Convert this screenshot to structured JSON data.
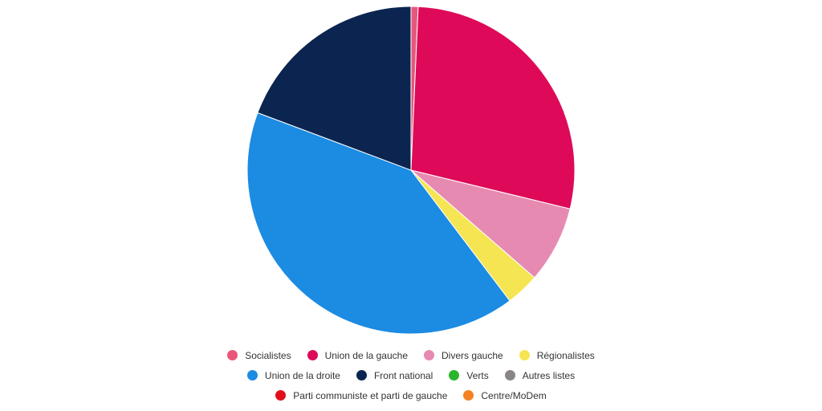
{
  "chart_data": {
    "type": "pie",
    "title": "",
    "unit": "%",
    "start_angle_deg": 0,
    "direction": "clockwise",
    "series": [
      {
        "name": "Socialistes",
        "value": 0.7,
        "color": "#e8577a"
      },
      {
        "name": "Union de la gauche",
        "value": 28.1,
        "color": "#de0a59"
      },
      {
        "name": "Divers gauche",
        "value": 7.6,
        "color": "#e78ab2"
      },
      {
        "name": "Régionalistes",
        "value": 3.3,
        "color": "#f5e552"
      },
      {
        "name": "Union de la droite",
        "value": 41.0,
        "color": "#1c8be2"
      },
      {
        "name": "Front national",
        "value": 19.3,
        "color": "#0b2550"
      },
      {
        "name": "Verts",
        "value": 0,
        "color": "#2cb52c"
      },
      {
        "name": "Autres listes",
        "value": 0,
        "color": "#8a8586"
      },
      {
        "name": "Parti communiste et parti de gauche",
        "value": 0,
        "color": "#e0101b"
      },
      {
        "name": "Centre/MoDem",
        "value": 0,
        "color": "#f58220"
      }
    ],
    "legend": {
      "position": "bottom-center",
      "rows": [
        [
          "Socialistes",
          "Union de la gauche",
          "Divers gauche",
          "Régionalistes"
        ],
        [
          "Union de la droite",
          "Front national",
          "Verts",
          "Autres listes"
        ],
        [
          "Parti communiste et parti de gauche",
          "Centre/MoDem"
        ]
      ]
    }
  }
}
